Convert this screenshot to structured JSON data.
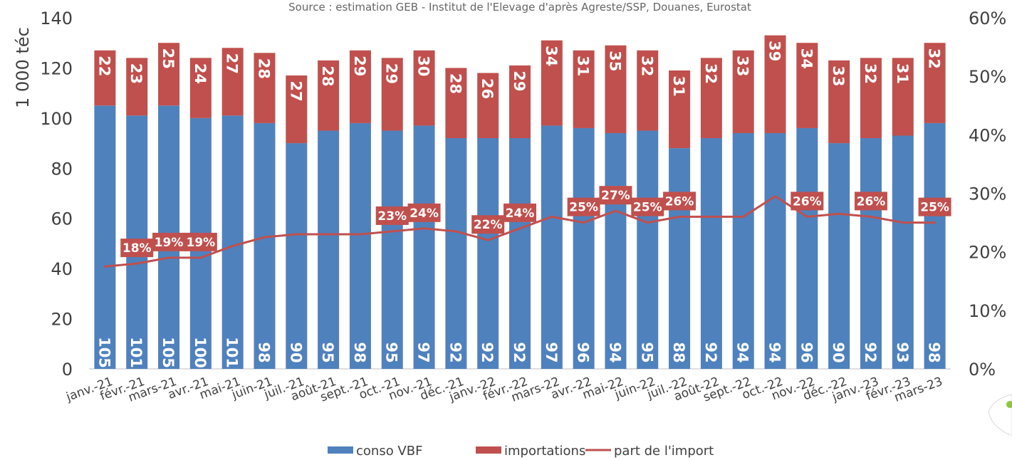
{
  "source": "Source : estimation GEB - Institut de l'Elevage d'après Agreste/SSP, Douanes, Eurostat",
  "colors": {
    "conso": "#4f81bd",
    "import": "#c0504d",
    "line": "#c0504d",
    "axis": "#bfbfbf"
  },
  "chart_data": {
    "type": "bar",
    "stacked": true,
    "ylabel": "1 000 téc",
    "ylim": [
      0,
      140
    ],
    "y_ticks": [
      "0",
      "20",
      "40",
      "60",
      "80",
      "100",
      "120",
      "140"
    ],
    "y2lim": [
      0,
      60
    ],
    "y2_ticks": [
      "0%",
      "10%",
      "20%",
      "30%",
      "40%",
      "50%",
      "60%"
    ],
    "categories": [
      "janv.-21",
      "févr.-21",
      "mars-21",
      "avr.-21",
      "mai-21",
      "juin-21",
      "juil.-21",
      "août-21",
      "sept.-21",
      "oct.-21",
      "nov.-21",
      "déc.-21",
      "janv.-22",
      "févr.-22",
      "mars-22",
      "avr.-22",
      "mai-22",
      "juin-22",
      "juil.-22",
      "août-22",
      "sept.-22",
      "oct.-22",
      "nov.-22",
      "déc.-22",
      "janv.-23",
      "févr.-23",
      "mars-23"
    ],
    "series": [
      {
        "name": "conso VBF",
        "values": [
          105,
          101,
          105,
          100,
          101,
          98,
          90,
          95,
          98,
          95,
          97,
          92,
          92,
          92,
          97,
          96,
          94,
          95,
          88,
          92,
          94,
          94,
          96,
          90,
          92,
          93,
          98
        ]
      },
      {
        "name": "importations",
        "values": [
          22,
          23,
          25,
          24,
          27,
          28,
          27,
          28,
          29,
          29,
          30,
          28,
          26,
          29,
          34,
          31,
          35,
          32,
          31,
          32,
          33,
          39,
          34,
          33,
          32,
          31,
          32
        ]
      },
      {
        "name": "part de l'import",
        "type": "line",
        "axis": "secondary",
        "values": [
          17.5,
          18,
          19,
          19,
          21,
          22.5,
          23,
          23,
          23,
          23.5,
          24,
          23.5,
          22,
          24,
          26,
          25,
          27,
          25,
          26,
          26,
          26,
          29.5,
          26,
          26.5,
          26,
          25,
          25
        ]
      }
    ],
    "line_labels": [
      {
        "index": 1,
        "text": "18%"
      },
      {
        "index": 2,
        "text": "19%"
      },
      {
        "index": 3,
        "text": "19%"
      },
      {
        "index": 9,
        "text": "23%"
      },
      {
        "index": 10,
        "text": "24%"
      },
      {
        "index": 12,
        "text": "22%"
      },
      {
        "index": 13,
        "text": "24%"
      },
      {
        "index": 15,
        "text": "25%"
      },
      {
        "index": 16,
        "text": "27%"
      },
      {
        "index": 17,
        "text": "25%"
      },
      {
        "index": 18,
        "text": "26%"
      },
      {
        "index": 22,
        "text": "26%"
      },
      {
        "index": 24,
        "text": "26%"
      },
      {
        "index": 26,
        "text": "25%"
      }
    ],
    "legend": [
      "conso VBF",
      "importations",
      "part de l'import"
    ],
    "legend_position": "bottom"
  }
}
